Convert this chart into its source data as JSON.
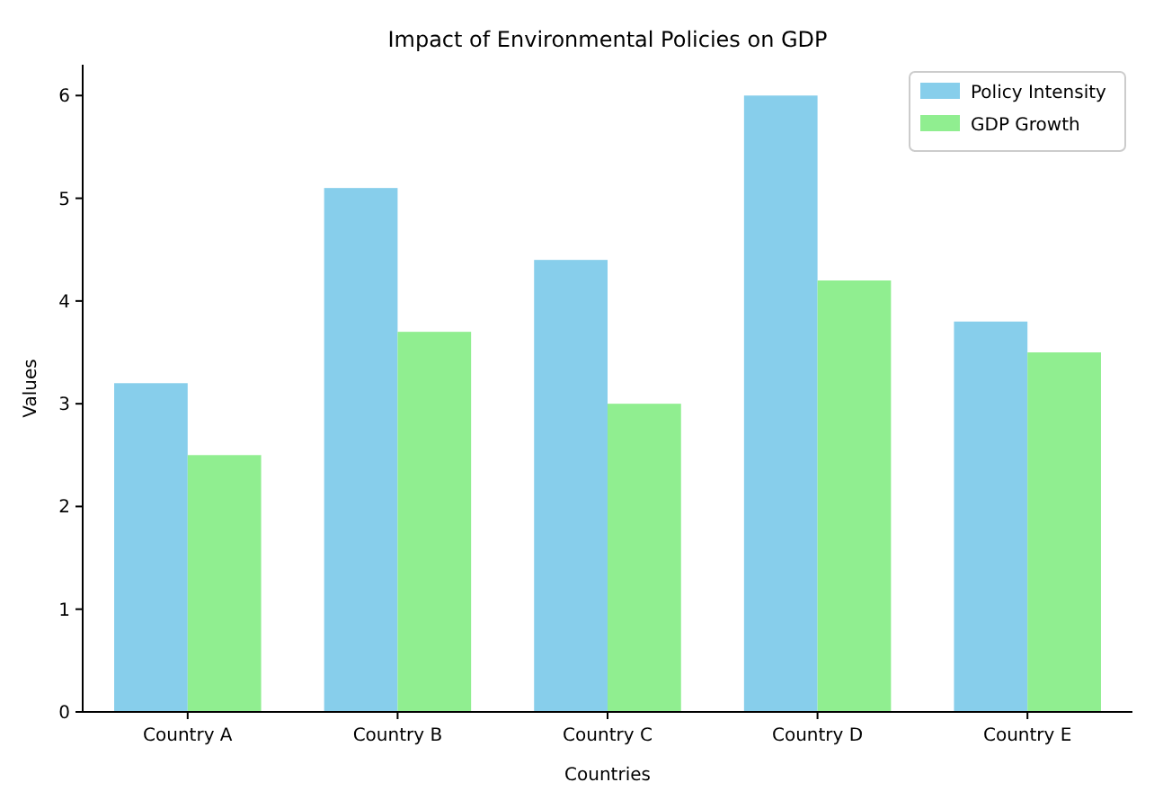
{
  "chart_data": {
    "type": "bar",
    "title": "Impact of Environmental Policies on GDP",
    "xlabel": "Countries",
    "ylabel": "Values",
    "categories": [
      "Country A",
      "Country B",
      "Country C",
      "Country D",
      "Country E"
    ],
    "series": [
      {
        "name": "Policy Intensity",
        "color": "#87ceeb",
        "values": [
          3.2,
          5.1,
          4.4,
          6.0,
          3.8
        ]
      },
      {
        "name": "GDP Growth",
        "color": "#90ee90",
        "values": [
          2.5,
          3.7,
          3.0,
          4.2,
          3.5
        ]
      }
    ],
    "ylim": [
      0,
      6.3
    ],
    "yticks": [
      0,
      1,
      2,
      3,
      4,
      5,
      6
    ],
    "grid": false,
    "legend": "top right"
  }
}
